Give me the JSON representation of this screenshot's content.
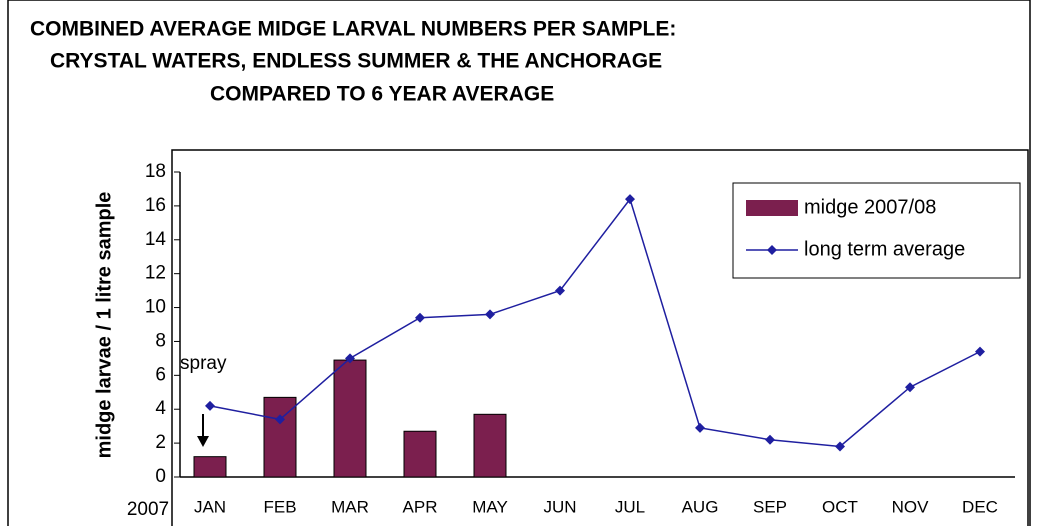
{
  "chart_data": {
    "type": "bar",
    "title": [
      "COMBINED AVERAGE MIDGE LARVAL NUMBERS PER SAMPLE:",
      "CRYSTAL WATERS, ENDLESS SUMMER & THE ANCHORAGE",
      "COMPARED TO 6 YEAR AVERAGE"
    ],
    "y_label": "midge larvae / 1 litre sample",
    "x_axis_year": "2007",
    "annotations": [
      "spray"
    ],
    "categories": [
      "JAN",
      "FEB",
      "MAR",
      "APR",
      "MAY",
      "JUN",
      "JUL",
      "AUG",
      "SEP",
      "OCT",
      "NOV",
      "DEC"
    ],
    "series": [
      {
        "name": "midge 2007/08",
        "type": "bar",
        "color": "#7b1f4e",
        "values": [
          1.2,
          4.7,
          6.9,
          2.7,
          3.7,
          null,
          null,
          null,
          null,
          null,
          null,
          null
        ]
      },
      {
        "name": "long term average",
        "type": "line",
        "color": "#1f1fa0",
        "values": [
          4.2,
          3.4,
          7.0,
          9.4,
          9.6,
          11.0,
          16.4,
          2.9,
          2.2,
          1.8,
          5.3,
          7.4
        ]
      }
    ],
    "ylim": [
      0,
      18
    ],
    "yticks": [
      0,
      2,
      4,
      6,
      8,
      10,
      12,
      14,
      16,
      18
    ],
    "grid": false,
    "legend": "top-right"
  }
}
